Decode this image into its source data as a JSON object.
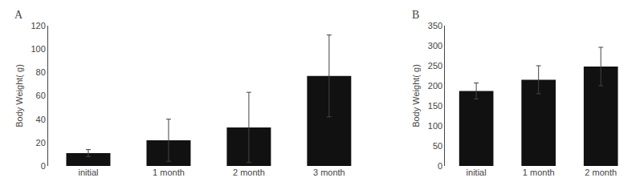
{
  "chart_data": [
    {
      "type": "bar",
      "title": "A",
      "categories": [
        "initial",
        "1 month",
        "2 month",
        "3 month"
      ],
      "values": [
        11,
        22,
        33,
        77
      ],
      "errors": [
        3,
        18,
        30,
        35
      ],
      "color": "#111111",
      "ylabel": "Body Weight( g)",
      "ylim": [
        0,
        120
      ],
      "yticks": [
        0,
        20,
        40,
        60,
        80,
        100,
        120
      ],
      "grid": false
    },
    {
      "type": "bar",
      "title": "B",
      "categories": [
        "initial",
        "1 month",
        "2 month"
      ],
      "values": [
        187,
        215,
        248
      ],
      "errors": [
        20,
        35,
        48
      ],
      "color": "#111111",
      "ylabel": "Body Weight( g)",
      "ylim": [
        0,
        350
      ],
      "yticks": [
        0,
        50,
        100,
        150,
        200,
        250,
        300,
        350
      ],
      "grid": false
    }
  ]
}
